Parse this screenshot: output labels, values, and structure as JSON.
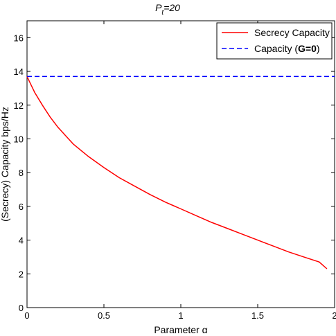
{
  "chart_data": {
    "type": "line",
    "title": "P_t=20",
    "title_main": "P",
    "title_sub": "t",
    "title_rest": "=20",
    "xlabel": "Parameter α",
    "ylabel": "(Secrecy) Capacity bps/Hz",
    "xlim": [
      0,
      2
    ],
    "ylim": [
      0,
      17
    ],
    "xticks": [
      0,
      0.5,
      1,
      1.5,
      2
    ],
    "xtick_labels": [
      "0",
      "0.5",
      "1",
      "1.5",
      "2"
    ],
    "yticks": [
      0,
      2,
      4,
      6,
      8,
      10,
      12,
      14,
      16
    ],
    "ytick_labels": [
      "0",
      "2",
      "4",
      "6",
      "8",
      "10",
      "12",
      "14",
      "16"
    ],
    "grid": false,
    "legend_position": "top-right",
    "series": [
      {
        "name": "Secrecy Capacity",
        "color": "#ff0000",
        "style": "solid",
        "x": [
          0,
          0.05,
          0.1,
          0.15,
          0.2,
          0.25,
          0.3,
          0.4,
          0.5,
          0.6,
          0.7,
          0.8,
          0.9,
          1.0,
          1.1,
          1.2,
          1.3,
          1.4,
          1.5,
          1.6,
          1.7,
          1.8,
          1.9,
          1.95
        ],
        "y": [
          13.7,
          12.75,
          12.0,
          11.3,
          10.7,
          10.2,
          9.7,
          8.95,
          8.3,
          7.7,
          7.2,
          6.7,
          6.25,
          5.85,
          5.45,
          5.05,
          4.7,
          4.35,
          4.0,
          3.65,
          3.3,
          3.0,
          2.7,
          2.3
        ]
      },
      {
        "name": "Capacity (G=0)",
        "legend_prefix": "Capacity (",
        "legend_bold": "G=0",
        "legend_suffix": ")",
        "color": "#0000ff",
        "style": "dashed",
        "x": [
          0,
          2
        ],
        "y": [
          13.7,
          13.7
        ]
      }
    ]
  }
}
